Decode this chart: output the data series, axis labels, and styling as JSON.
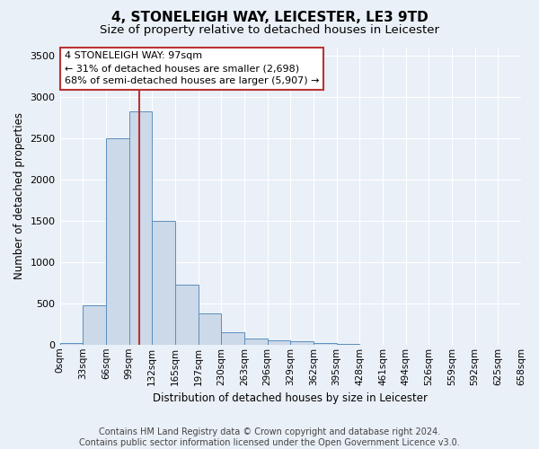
{
  "title1": "4, STONELEIGH WAY, LEICESTER, LE3 9TD",
  "title2": "Size of property relative to detached houses in Leicester",
  "xlabel": "Distribution of detached houses by size in Leicester",
  "ylabel": "Number of detached properties",
  "bar_color": "#ccd9e8",
  "bar_edge_color": "#5a8fc0",
  "bar_values": [
    20,
    480,
    2500,
    2820,
    1500,
    730,
    380,
    155,
    70,
    55,
    45,
    20,
    5,
    0,
    0,
    0,
    0,
    0,
    0,
    0
  ],
  "bin_labels": [
    "0sqm",
    "33sqm",
    "66sqm",
    "99sqm",
    "132sqm",
    "165sqm",
    "197sqm",
    "230sqm",
    "263sqm",
    "296sqm",
    "329sqm",
    "362sqm",
    "395sqm",
    "428sqm",
    "461sqm",
    "494sqm",
    "526sqm",
    "559sqm",
    "592sqm",
    "625sqm",
    "658sqm"
  ],
  "n_bins": 20,
  "bin_width": 33,
  "ylim": [
    0,
    3600
  ],
  "yticks": [
    0,
    500,
    1000,
    1500,
    2000,
    2500,
    3000,
    3500
  ],
  "vline_x": 3,
  "vline_color": "#bb3333",
  "annotation_box_text": "4 STONELEIGH WAY: 97sqm\n← 31% of detached houses are smaller (2,698)\n68% of semi-detached houses are larger (5,907) →",
  "footer_text": "Contains HM Land Registry data © Crown copyright and database right 2024.\nContains public sector information licensed under the Open Government Licence v3.0.",
  "background_color": "#eaf0f7",
  "plot_bg_color": "#eaf0f7",
  "grid_color": "#ffffff",
  "title_fontsize": 11,
  "subtitle_fontsize": 9.5,
  "annotation_fontsize": 8,
  "footer_fontsize": 7,
  "ylabel_fontsize": 8.5,
  "xlabel_fontsize": 8.5,
  "tick_fontsize": 7.5
}
